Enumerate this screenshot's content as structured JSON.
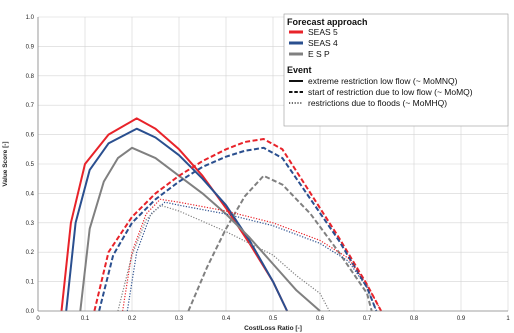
{
  "chart_data": {
    "type": "line",
    "xlabel": "Cost/Loss Ratio [-]",
    "ylabel": "Value Score [-]",
    "xlim": [
      0,
      1
    ],
    "ylim": [
      0,
      1
    ],
    "x_ticks": [
      "0",
      "0.1",
      "0.2",
      "0.3",
      "0.4",
      "0.5",
      "0.6",
      "0.7",
      "0.8",
      "0.9",
      "1"
    ],
    "y_ticks": [
      "0.0",
      "0.1",
      "0.2",
      "0.3",
      "0.4",
      "0.5",
      "0.6",
      "0.7",
      "0.8",
      "0.9",
      "1.0"
    ],
    "grid": true,
    "legend_placement": "top-right",
    "legend": {
      "approach_title": "Forecast approach",
      "approaches": [
        {
          "label": "SEAS 5",
          "color": "#e8232a"
        },
        {
          "label": "SEAS 4",
          "color": "#2a4f8f"
        },
        {
          "label": "E S P",
          "color": "#808080"
        }
      ],
      "event_title": "Event",
      "events": [
        {
          "label": "extreme restriction low flow (~ MoMNQ)",
          "dash": "solid"
        },
        {
          "label": "start of restriction due to low flow (~ MoMQ)",
          "dash": "dashed"
        },
        {
          "label": "restrictions due to floods (~ MoMHQ)",
          "dash": "dotted"
        }
      ]
    },
    "series": [
      {
        "approach": "SEAS 5",
        "event": "solid",
        "color": "#e8232a",
        "dash": "solid",
        "points": [
          [
            0.05,
            0
          ],
          [
            0.07,
            0.3
          ],
          [
            0.1,
            0.5
          ],
          [
            0.15,
            0.6
          ],
          [
            0.21,
            0.655
          ],
          [
            0.25,
            0.62
          ],
          [
            0.3,
            0.55
          ],
          [
            0.35,
            0.46
          ],
          [
            0.4,
            0.35
          ],
          [
            0.45,
            0.23
          ],
          [
            0.5,
            0.1
          ],
          [
            0.53,
            0
          ]
        ]
      },
      {
        "approach": "SEAS 4",
        "event": "solid",
        "color": "#2a4f8f",
        "dash": "solid",
        "points": [
          [
            0.06,
            0
          ],
          [
            0.08,
            0.3
          ],
          [
            0.11,
            0.48
          ],
          [
            0.15,
            0.57
          ],
          [
            0.21,
            0.62
          ],
          [
            0.25,
            0.59
          ],
          [
            0.3,
            0.53
          ],
          [
            0.35,
            0.45
          ],
          [
            0.4,
            0.36
          ],
          [
            0.45,
            0.24
          ],
          [
            0.5,
            0.1
          ],
          [
            0.53,
            0
          ]
        ]
      },
      {
        "approach": "E S P",
        "event": "solid",
        "color": "#808080",
        "dash": "solid",
        "points": [
          [
            0.09,
            0
          ],
          [
            0.11,
            0.28
          ],
          [
            0.14,
            0.44
          ],
          [
            0.17,
            0.52
          ],
          [
            0.2,
            0.555
          ],
          [
            0.25,
            0.52
          ],
          [
            0.3,
            0.46
          ],
          [
            0.35,
            0.4
          ],
          [
            0.4,
            0.33
          ],
          [
            0.45,
            0.25
          ],
          [
            0.5,
            0.16
          ],
          [
            0.55,
            0.07
          ],
          [
            0.6,
            0
          ]
        ]
      },
      {
        "approach": "SEAS 5",
        "event": "dashed",
        "color": "#e8232a",
        "dash": "dashed",
        "points": [
          [
            0.12,
            0
          ],
          [
            0.15,
            0.2
          ],
          [
            0.2,
            0.32
          ],
          [
            0.25,
            0.4
          ],
          [
            0.3,
            0.46
          ],
          [
            0.35,
            0.51
          ],
          [
            0.4,
            0.55
          ],
          [
            0.44,
            0.575
          ],
          [
            0.48,
            0.585
          ],
          [
            0.52,
            0.55
          ],
          [
            0.58,
            0.4
          ],
          [
            0.64,
            0.25
          ],
          [
            0.7,
            0.09
          ],
          [
            0.73,
            0
          ]
        ]
      },
      {
        "approach": "SEAS 4",
        "event": "dashed",
        "color": "#2a4f8f",
        "dash": "dashed",
        "points": [
          [
            0.13,
            0
          ],
          [
            0.16,
            0.19
          ],
          [
            0.2,
            0.3
          ],
          [
            0.25,
            0.38
          ],
          [
            0.3,
            0.44
          ],
          [
            0.35,
            0.49
          ],
          [
            0.4,
            0.525
          ],
          [
            0.44,
            0.545
          ],
          [
            0.48,
            0.555
          ],
          [
            0.52,
            0.52
          ],
          [
            0.58,
            0.38
          ],
          [
            0.64,
            0.24
          ],
          [
            0.7,
            0.08
          ],
          [
            0.72,
            0
          ]
        ]
      },
      {
        "approach": "E S P",
        "event": "dashed",
        "color": "#808080",
        "dash": "dashed",
        "points": [
          [
            0.32,
            0
          ],
          [
            0.36,
            0.15
          ],
          [
            0.4,
            0.28
          ],
          [
            0.44,
            0.39
          ],
          [
            0.48,
            0.46
          ],
          [
            0.52,
            0.43
          ],
          [
            0.58,
            0.33
          ],
          [
            0.64,
            0.2
          ],
          [
            0.7,
            0.06
          ],
          [
            0.71,
            0
          ]
        ]
      },
      {
        "approach": "SEAS 5",
        "event": "dotted",
        "color": "#e8232a",
        "dash": "dotted",
        "points": [
          [
            0.18,
            0
          ],
          [
            0.2,
            0.2
          ],
          [
            0.23,
            0.33
          ],
          [
            0.26,
            0.38
          ],
          [
            0.3,
            0.37
          ],
          [
            0.4,
            0.34
          ],
          [
            0.5,
            0.3
          ],
          [
            0.6,
            0.24
          ],
          [
            0.66,
            0.18
          ],
          [
            0.7,
            0.09
          ],
          [
            0.73,
            0
          ]
        ]
      },
      {
        "approach": "SEAS 4",
        "event": "dotted",
        "color": "#2a4f8f",
        "dash": "dotted",
        "points": [
          [
            0.19,
            0
          ],
          [
            0.21,
            0.2
          ],
          [
            0.24,
            0.33
          ],
          [
            0.27,
            0.37
          ],
          [
            0.3,
            0.36
          ],
          [
            0.4,
            0.33
          ],
          [
            0.5,
            0.29
          ],
          [
            0.6,
            0.23
          ],
          [
            0.66,
            0.17
          ],
          [
            0.7,
            0.08
          ],
          [
            0.72,
            0
          ]
        ]
      },
      {
        "approach": "E S P",
        "event": "dotted",
        "color": "#808080",
        "dash": "dotted",
        "points": [
          [
            0.17,
            0
          ],
          [
            0.2,
            0.19
          ],
          [
            0.23,
            0.31
          ],
          [
            0.26,
            0.36
          ],
          [
            0.3,
            0.34
          ],
          [
            0.4,
            0.27
          ],
          [
            0.5,
            0.19
          ],
          [
            0.55,
            0.12
          ],
          [
            0.6,
            0.06
          ],
          [
            0.62,
            0
          ]
        ]
      }
    ]
  }
}
